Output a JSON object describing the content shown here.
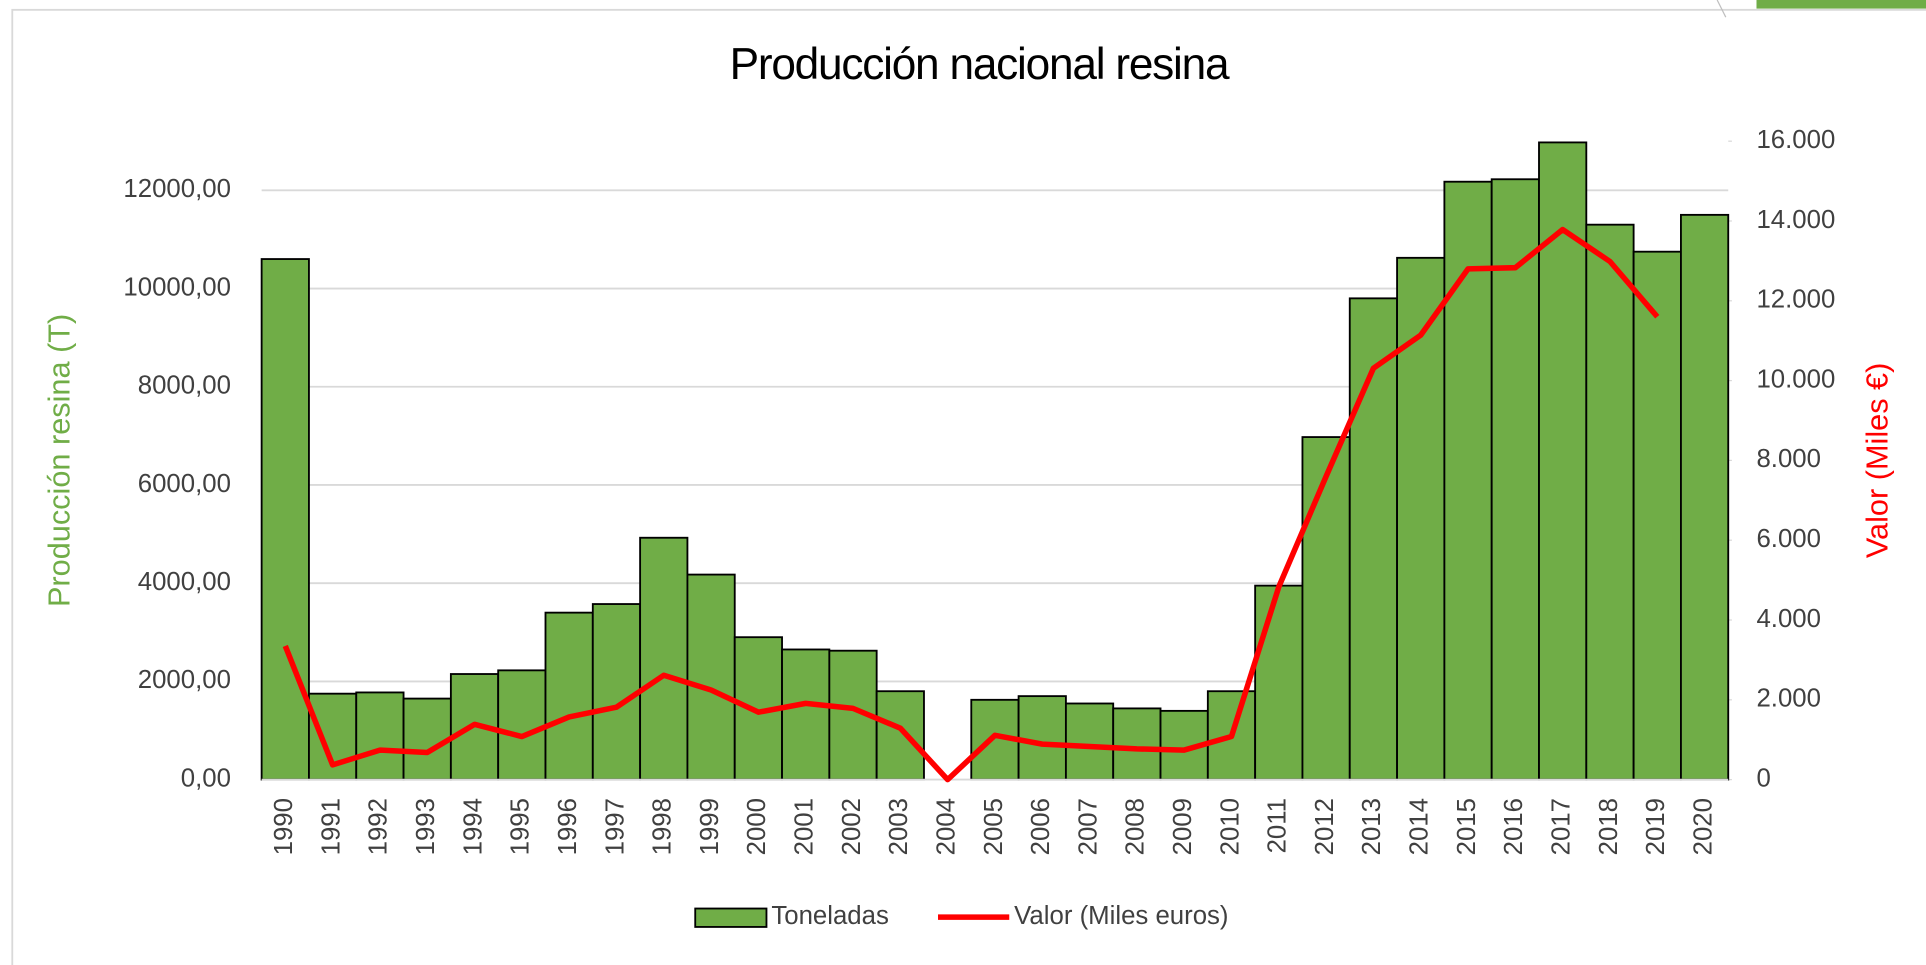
{
  "chart_data": {
    "type": "bar",
    "title": "Producción nacional resina",
    "ylabel": "Producción resina (T)",
    "y2label": "Valor (Miles €)",
    "categories": [
      "1990",
      "1991",
      "1992",
      "1993",
      "1994",
      "1995",
      "1996",
      "1997",
      "1998",
      "1999",
      "2000",
      "2001",
      "2002",
      "2003",
      "2004",
      "2005",
      "2006",
      "2007",
      "2008",
      "2009",
      "2010",
      "2011",
      "2012",
      "2013",
      "2014",
      "2015",
      "2016",
      "2017",
      "2018",
      "2019",
      "2020"
    ],
    "series": [
      {
        "name": "Toneladas",
        "type": "bar",
        "color": "#70ad47",
        "axis": "y",
        "values": [
          10600,
          1750,
          1775,
          1650,
          2150,
          2225,
          3400,
          3575,
          4925,
          4175,
          2900,
          2650,
          2625,
          1800,
          null,
          1625,
          1700,
          1550,
          1450,
          1400,
          1800,
          3950,
          6975,
          9800,
          10625,
          12175,
          12225,
          12975,
          11300,
          10750,
          11500
        ]
      },
      {
        "name": "Valor (Miles euros)",
        "type": "line",
        "color": "#ff0000",
        "axis": "y2",
        "values": [
          3350,
          370,
          740,
          680,
          1385,
          1080,
          1570,
          1815,
          2615,
          2245,
          1690,
          1910,
          1785,
          1290,
          0,
          1110,
          890,
          830,
          770,
          740,
          1080,
          4830,
          7600,
          10310,
          11140,
          12800,
          12830,
          13785,
          12985,
          11600,
          null
        ]
      }
    ],
    "ylim": [
      0,
      13000
    ],
    "yticks": [
      {
        "value": 0,
        "label": "0,00"
      },
      {
        "value": 2000,
        "label": "2000,00"
      },
      {
        "value": 4000,
        "label": "4000,00"
      },
      {
        "value": 6000,
        "label": "6000,00"
      },
      {
        "value": 8000,
        "label": "8000,00"
      },
      {
        "value": 10000,
        "label": "10000,00"
      },
      {
        "value": 12000,
        "label": "12000,00"
      }
    ],
    "y2lim": [
      0,
      16000
    ],
    "y2ticks": [
      0,
      {
        "value": 2000,
        "label": "2.000"
      },
      {
        "value": 4000,
        "label": "4.000"
      },
      {
        "value": 6000,
        "label": "6.000"
      },
      {
        "value": 8000,
        "label": "8.000"
      },
      {
        "value": 10000,
        "label": "10.000"
      },
      {
        "value": 12000,
        "label": "12.000"
      },
      {
        "value": 14000,
        "label": "14.000"
      },
      {
        "value": 16000,
        "label": "16.000"
      }
    ],
    "grid": true,
    "legend": "bottom"
  }
}
